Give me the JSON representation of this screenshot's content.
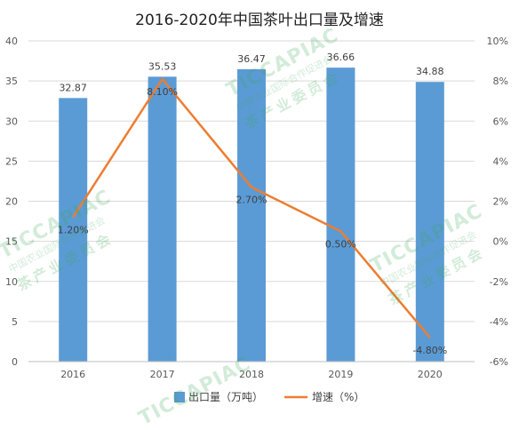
{
  "chart_data": {
    "type": "bar+line",
    "title": "2016-2020年中国茶叶出口量及增速",
    "categories": [
      "2016",
      "2017",
      "2018",
      "2019",
      "2020"
    ],
    "series": [
      {
        "name": "出口量（万吨）",
        "type": "bar",
        "axis": "left",
        "values": [
          32.87,
          35.53,
          36.47,
          36.66,
          34.88
        ],
        "labels": [
          "32.87",
          "35.53",
          "36.47",
          "36.66",
          "34.88"
        ],
        "color": "#5b9bd5"
      },
      {
        "name": "增速（%）",
        "type": "line",
        "axis": "right",
        "values": [
          1.2,
          8.1,
          2.7,
          0.5,
          -4.8
        ],
        "labels": [
          "1.20%",
          "8.10%",
          "2.70%",
          "0.50%",
          "-4.80%"
        ],
        "color": "#ed7d31"
      }
    ],
    "y_left": {
      "min": 0,
      "max": 40,
      "ticks": [
        "0",
        "5",
        "10",
        "15",
        "20",
        "25",
        "30",
        "35",
        "40"
      ]
    },
    "y_right": {
      "min": -6,
      "max": 10,
      "ticks": [
        "-6%",
        "-4%",
        "-2%",
        "0%",
        "2%",
        "4%",
        "6%",
        "8%",
        "10%"
      ]
    },
    "grid": true,
    "legend_position": "bottom"
  },
  "watermark": {
    "latin": "TICCAPIAC",
    "line1": "中国农业国际合作促进会",
    "line2": "茶产业委员会",
    "colors": {
      "leaf": "#3aa657"
    }
  }
}
